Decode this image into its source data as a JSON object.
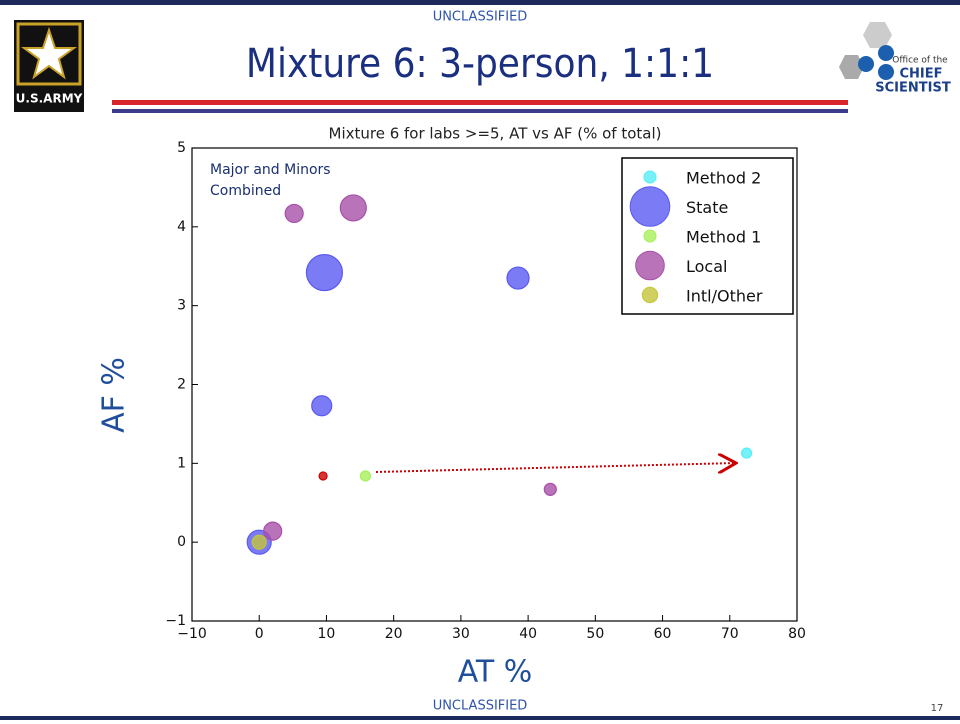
{
  "slide": {
    "classification_top": "UNCLASSIFIED",
    "classification_bottom": "UNCLASSIFIED",
    "title": "Mixture 6:  3-person, 1:1:1",
    "page_number": "17",
    "army_logo": "U.S.ARMY",
    "ocs_logo": [
      "Office of the",
      "CHIEF",
      "SCIENTIST"
    ]
  },
  "chart_data": {
    "type": "scatter",
    "title": "Mixture 6 for labs >=5, AT vs AF (% of total)",
    "x_label": "AT %",
    "y_label": "AF %",
    "annotation": [
      "Major and Minors",
      "Combined"
    ],
    "xlim": [
      -10,
      80
    ],
    "xticks": [
      {
        "value": -10,
        "label": "−10"
      },
      0,
      10,
      20,
      30,
      40,
      50,
      60,
      70,
      80
    ],
    "ylim": [
      -1,
      5
    ],
    "yticks": [
      {
        "value": -1,
        "label": "−1"
      },
      0,
      1,
      2,
      3,
      4,
      5
    ],
    "legend": "upper right",
    "series": [
      {
        "name": "Method 2",
        "color": "#55eef5",
        "x": [
          72.5
        ],
        "values": [
          1.13
        ],
        "sizes": [
          5
        ]
      },
      {
        "name": "State",
        "color": "#5a5af2",
        "x": [
          9.7,
          38.5,
          9.3,
          0
        ],
        "values": [
          3.42,
          3.35,
          1.73,
          0
        ],
        "sizes": [
          18,
          11,
          10,
          12
        ]
      },
      {
        "name": "Method 1",
        "color": "#a6f05a",
        "x": [
          15.8
        ],
        "values": [
          0.84
        ],
        "sizes": [
          5
        ]
      },
      {
        "name": "Local",
        "color": "#a850a8",
        "x": [
          5.2,
          14,
          2,
          43.3
        ],
        "values": [
          4.17,
          4.24,
          0.14,
          0.67
        ],
        "sizes": [
          9,
          13,
          9,
          6
        ]
      },
      {
        "name": "Intl/Other",
        "color": "#c4c43a",
        "x": [
          0
        ],
        "values": [
          0
        ],
        "sizes": [
          7
        ]
      },
      {
        "color": "#cc0000",
        "x": [
          9.5
        ],
        "values": [
          0.84
        ],
        "sizes": [
          4
        ]
      }
    ]
  }
}
